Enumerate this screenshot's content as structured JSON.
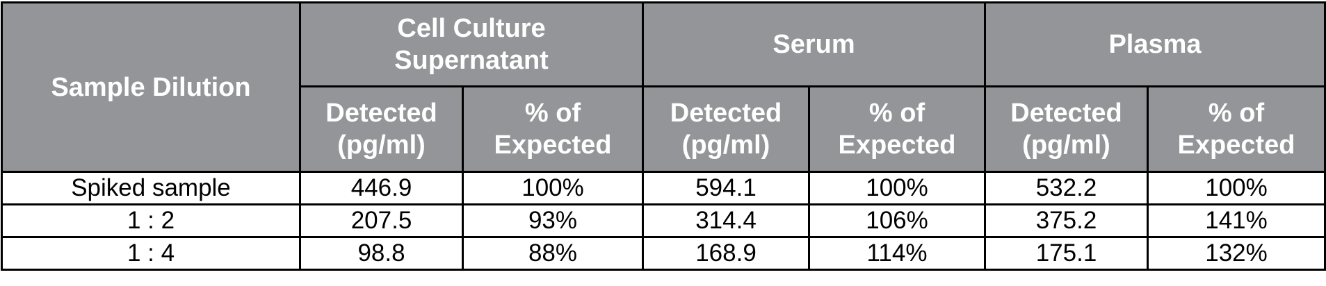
{
  "table": {
    "corner": "Sample Dilution",
    "groups": [
      "Cell Culture Supernatant",
      "Serum",
      "Plasma"
    ],
    "subheaders": [
      "Detected (pg/ml)",
      "% of Expected",
      "Detected (pg/ml)",
      "% of Expected",
      "Detected (pg/ml)",
      "% of Expected"
    ],
    "rows": [
      [
        "Spiked sample",
        "446.9",
        "100%",
        "594.1",
        "100%",
        "532.2",
        "100%"
      ],
      [
        "1 : 2",
        "207.5",
        "93%",
        "314.4",
        "106%",
        "375.2",
        "141%"
      ],
      [
        "1 : 4",
        "98.8",
        "88%",
        "168.9",
        "114%",
        "175.1",
        "132%"
      ]
    ]
  }
}
